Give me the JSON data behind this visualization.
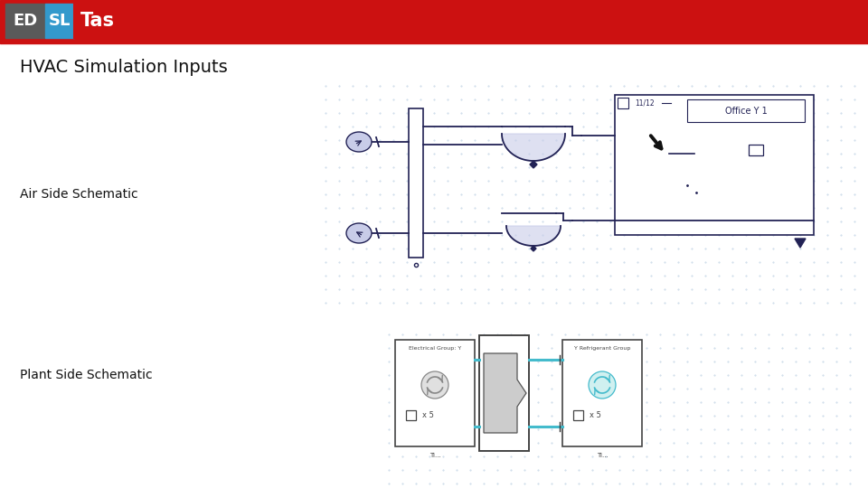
{
  "bg_color": "#ffffff",
  "header_color": "#cc1111",
  "logo_box1_color": "#5a5a5a",
  "logo_box2_color": "#3399cc",
  "logo_box3_color": "#cc1111",
  "logo_text1": "ED",
  "logo_text2": "SL",
  "logo_text3": "Tas",
  "title": "HVAC Simulation Inputs",
  "label_air": "Air Side Schematic",
  "label_plant": "Plant Side Schematic",
  "grid_color": "#c8d8e8",
  "sc": "#222255",
  "fan_fill": "#c8cce8",
  "fan_fill2": "#c8cce8",
  "plant_cyan": "#44bbcc",
  "plant_gray": "#aaaaaa",
  "plant_cyan_fill": "#c8eef0"
}
